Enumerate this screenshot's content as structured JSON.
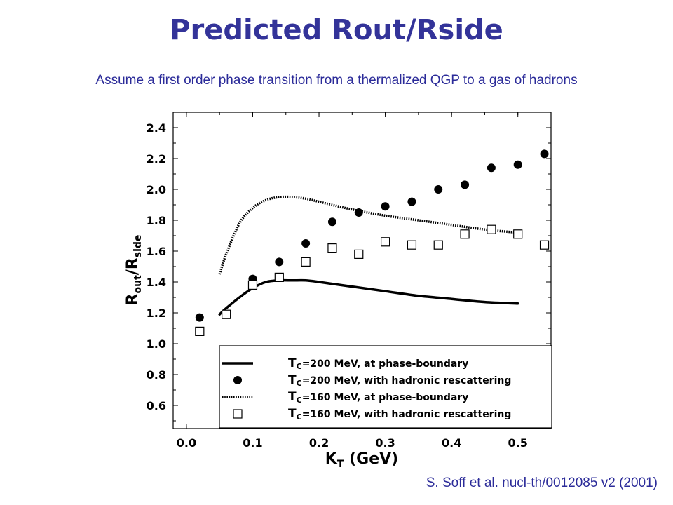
{
  "slide": {
    "title": "Predicted Rout/Rside",
    "subtitle": "Assume a first order phase transition from a thermalized QGP to a gas of hadrons",
    "citation": "S. Soff et al. nucl-th/0012085 v2 (2001)"
  },
  "chart_data": {
    "type": "line",
    "title": "",
    "xlabel": {
      "main": "K",
      "sub": "T",
      "rest": " (GeV)"
    },
    "ylabel": {
      "a": "R",
      "a_sub": "out",
      "sep": "/R",
      "b_sub": "side"
    },
    "xlim": [
      -0.02,
      0.55
    ],
    "ylim": [
      0.45,
      2.5
    ],
    "xticks": [
      "0.0",
      "0.1",
      "0.2",
      "0.3",
      "0.4",
      "0.5"
    ],
    "xtick_values": [
      0.0,
      0.1,
      0.2,
      0.3,
      0.4,
      0.5
    ],
    "yticks": [
      "0.6",
      "0.8",
      "1.0",
      "1.2",
      "1.4",
      "1.6",
      "1.8",
      "2.0",
      "2.2",
      "2.4"
    ],
    "ytick_values": [
      0.6,
      0.8,
      1.0,
      1.2,
      1.4,
      1.6,
      1.8,
      2.0,
      2.2,
      2.4
    ],
    "legend_position": "bottom-right",
    "series": [
      {
        "name": "Tc=200 MeV, at phase-boundary",
        "legend": {
          "t": "T",
          "sub": "C",
          "rest": "=200 MeV, at phase-boundary"
        },
        "style": "solid-line",
        "x": [
          0.05,
          0.06,
          0.08,
          0.1,
          0.12,
          0.14,
          0.16,
          0.18,
          0.2,
          0.25,
          0.3,
          0.35,
          0.4,
          0.45,
          0.5
        ],
        "y": [
          1.19,
          1.23,
          1.3,
          1.36,
          1.4,
          1.41,
          1.41,
          1.41,
          1.4,
          1.37,
          1.34,
          1.31,
          1.29,
          1.27,
          1.26
        ]
      },
      {
        "name": "Tc=200 MeV, with hadronic rescattering",
        "legend": {
          "t": "T",
          "sub": "C",
          "rest": "=200 MeV, with hadronic rescattering"
        },
        "style": "filled-circle",
        "x": [
          0.02,
          0.06,
          0.1,
          0.14,
          0.18,
          0.22,
          0.26,
          0.3,
          0.34,
          0.38,
          0.42,
          0.46,
          0.5,
          0.54
        ],
        "y": [
          1.17,
          1.19,
          1.42,
          1.53,
          1.65,
          1.79,
          1.85,
          1.89,
          1.92,
          2.0,
          2.03,
          2.14,
          2.16,
          2.23
        ]
      },
      {
        "name": "Tc=160 MeV, at phase-boundary",
        "legend": {
          "t": "T",
          "sub": "C",
          "rest": "=160 MeV, at phase-boundary"
        },
        "style": "dotted-line",
        "x": [
          0.05,
          0.06,
          0.08,
          0.1,
          0.12,
          0.14,
          0.16,
          0.18,
          0.2,
          0.25,
          0.3,
          0.35,
          0.4,
          0.45,
          0.5
        ],
        "y": [
          1.45,
          1.58,
          1.78,
          1.88,
          1.93,
          1.95,
          1.95,
          1.94,
          1.92,
          1.87,
          1.83,
          1.8,
          1.77,
          1.74,
          1.72
        ]
      },
      {
        "name": "Tc=160 MeV, with hadronic rescattering",
        "legend": {
          "t": "T",
          "sub": "C",
          "rest": "=160 MeV, with hadronic rescattering"
        },
        "style": "open-square",
        "x": [
          0.02,
          0.06,
          0.1,
          0.14,
          0.18,
          0.22,
          0.26,
          0.3,
          0.34,
          0.38,
          0.42,
          0.46,
          0.5,
          0.54
        ],
        "y": [
          1.08,
          1.19,
          1.38,
          1.43,
          1.53,
          1.62,
          1.58,
          1.66,
          1.64,
          1.64,
          1.71,
          1.74,
          1.71,
          1.64
        ]
      }
    ]
  }
}
